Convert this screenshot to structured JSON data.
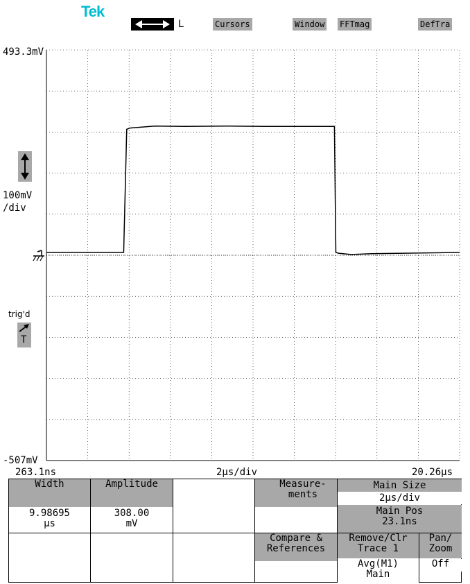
{
  "header": {
    "brand": "Tek",
    "mode_label": "L",
    "menu": {
      "cursors": "Cursors",
      "window": "Window",
      "fft": "FFTmag",
      "def": "DefTra"
    }
  },
  "scope": {
    "top_voltage": "493.3mV",
    "bottom_voltage": "-507mV",
    "volts_per_div": "100mV",
    "volts_per_div_unit": "/div",
    "trigger_status": "trig'd",
    "trigger_letter": "T",
    "time_start": "263.1ns",
    "time_per_div": "2µs/div",
    "time_end": "20.26µs"
  },
  "measurements": {
    "width_label": "Width",
    "width_value": "9.98695",
    "width_unit": "µs",
    "amplitude_label": "Amplitude",
    "amplitude_value": "308.00",
    "amplitude_unit": "mV"
  },
  "menu_panel": {
    "measurements_line1": "Measure-",
    "measurements_line2": "ments",
    "main_size_label": "Main Size",
    "main_size_value": "2µs/div",
    "main_pos_label": "Main Pos",
    "main_pos_value": "23.1ns",
    "compare_line1": "Compare &",
    "compare_line2": "References",
    "remove_line1": "Remove/Clr",
    "remove_line2": "Trace 1",
    "trace_source_line1": "Avg(M1)",
    "trace_source_line2": "Main",
    "pan_line1": "Pan/",
    "pan_line2": "Zoom",
    "pan_value": "Off"
  },
  "chart_data": {
    "type": "line",
    "xlabel": "",
    "ylabel": "",
    "x_unit": "µs",
    "y_unit": "mV",
    "xlim": [
      0.263,
      20.26
    ],
    "ylim": [
      -507,
      493.3
    ],
    "series": [
      {
        "x": [
          0.263,
          2.0,
          4.0,
          4.15,
          4.3,
          5.5,
          7.0,
          9.0,
          11.0,
          13.0,
          14.2,
          14.27,
          14.4,
          15.0,
          16.0,
          17.5,
          19.0,
          20.26
        ],
        "y": [
          0,
          0,
          0,
          300,
          303,
          308,
          307,
          308,
          307,
          307,
          307,
          0,
          -2,
          -5,
          -3,
          -2,
          -1,
          0
        ]
      }
    ]
  }
}
